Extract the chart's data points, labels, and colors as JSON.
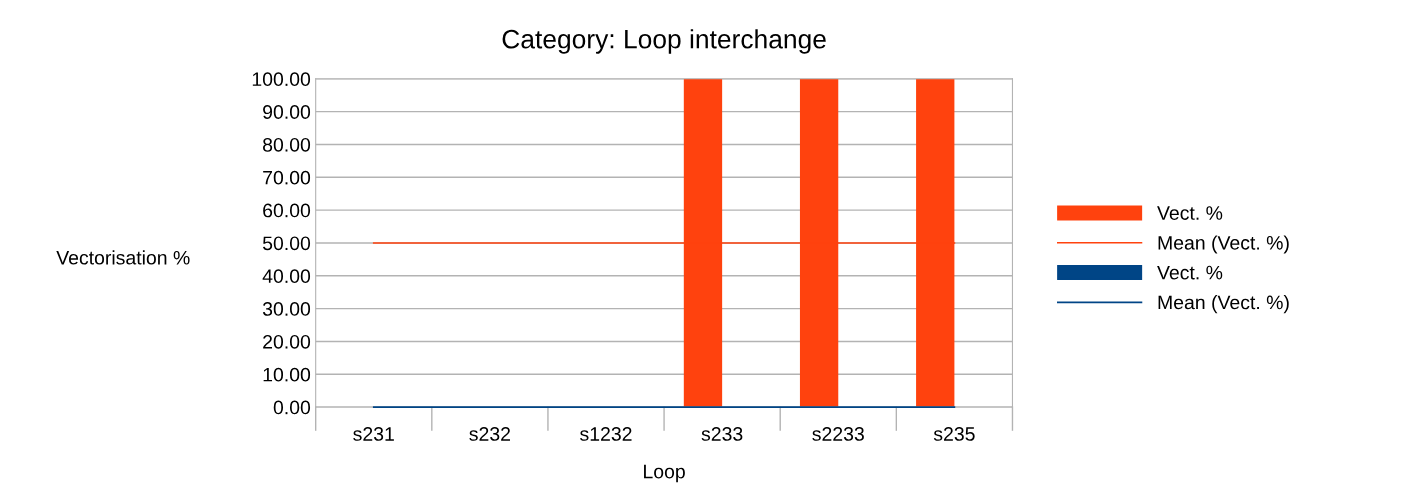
{
  "chart_data": {
    "type": "bar",
    "title": "Category: Loop interchange",
    "xlabel": "Loop",
    "ylabel": "Vectorisation %",
    "categories": [
      "s231",
      "s232",
      "s1232",
      "s233",
      "s2233",
      "s235"
    ],
    "series": [
      {
        "name": "Vect. %",
        "color": "#ff420e",
        "values": [
          0,
          0,
          0,
          100,
          100,
          100
        ]
      },
      {
        "name": "Mean (Vect. %)",
        "type": "line",
        "color": "#ff420e",
        "values": [
          50,
          50,
          50,
          50,
          50,
          50
        ]
      },
      {
        "name": "Vect. %",
        "color": "#004586",
        "values": [
          0,
          0,
          0,
          0,
          0,
          0
        ]
      },
      {
        "name": "Mean (Vect. %)",
        "type": "line",
        "color": "#004586",
        "values": [
          0,
          0,
          0,
          0,
          0,
          0
        ]
      }
    ],
    "ylim": [
      0,
      100
    ],
    "yticks": [
      {
        "value": 0,
        "label": "0.00"
      },
      {
        "value": 10,
        "label": "10.00"
      },
      {
        "value": 20,
        "label": "20.00"
      },
      {
        "value": 30,
        "label": "30.00"
      },
      {
        "value": 40,
        "label": "40.00"
      },
      {
        "value": 50,
        "label": "50.00"
      },
      {
        "value": 60,
        "label": "60.00"
      },
      {
        "value": 70,
        "label": "70.00"
      },
      {
        "value": 80,
        "label": "80.00"
      },
      {
        "value": 90,
        "label": "90.00"
      },
      {
        "value": 100,
        "label": "100.00"
      }
    ],
    "grid": "y",
    "legend": "right"
  }
}
